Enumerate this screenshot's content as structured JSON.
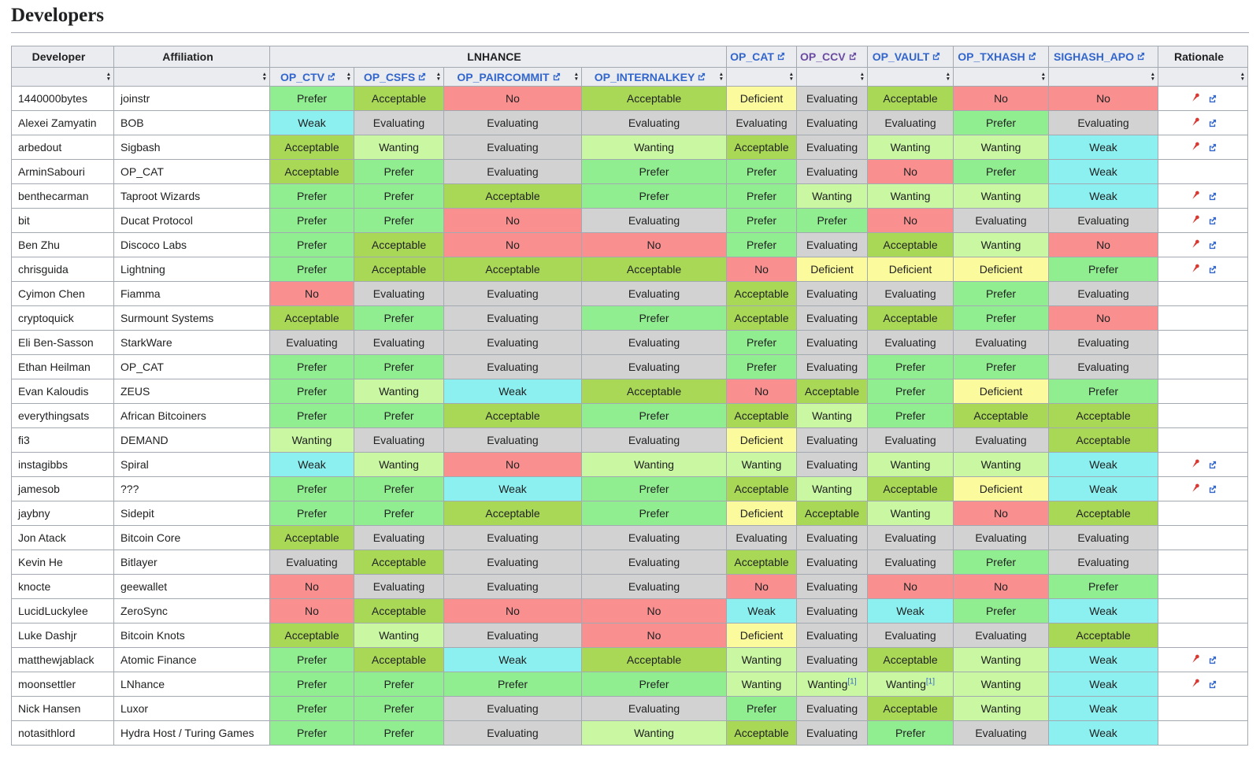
{
  "page": {
    "title": "Developers"
  },
  "table": {
    "columns": {
      "developer": "Developer",
      "affiliation": "Affiliation",
      "lnhance_group": "LNHANCE",
      "rationale": "Rationale",
      "lnhance_sub": [
        {
          "id": "op_ctv",
          "label": "OP_CTV"
        },
        {
          "id": "op_csfs",
          "label": "OP_CSFS"
        },
        {
          "id": "op_paircommit",
          "label": "OP_PAIRCOMMIT"
        },
        {
          "id": "op_internalkey",
          "label": "OP_INTERNALKEY"
        }
      ],
      "proposals": [
        {
          "id": "op_cat",
          "label": "OP_CAT",
          "visited": false
        },
        {
          "id": "op_ccv",
          "label": "OP_CCV",
          "visited": true
        },
        {
          "id": "op_vault",
          "label": "OP_VAULT",
          "visited": false
        },
        {
          "id": "op_txhash",
          "label": "OP_TXHASH",
          "visited": false
        },
        {
          "id": "sighash_apo",
          "label": "SIGHASH_APO",
          "visited": false
        }
      ]
    },
    "link_colors": {
      "link": "#3366cc",
      "visited": "#6b4ba1"
    },
    "status_colors": {
      "Prefer": "#90ee90",
      "Acceptable": "#a9d857",
      "Wanting": "#c9f7a2",
      "Weak": "#8cf0f0",
      "Evaluating": "#d2d2d2",
      "Deficient": "#fbfa9d",
      "No": "#f98f8f"
    },
    "pin_color": "#d73a33",
    "rows": [
      {
        "developer": "1440000bytes",
        "affiliation": "joinstr",
        "cells": [
          "Prefer",
          "Acceptable",
          "No",
          "Acceptable",
          "Deficient",
          "Evaluating",
          "Acceptable",
          "No",
          "No"
        ],
        "rationale": true
      },
      {
        "developer": "Alexei Zamyatin",
        "affiliation": "BOB",
        "cells": [
          "Weak",
          "Evaluating",
          "Evaluating",
          "Evaluating",
          "Evaluating",
          "Evaluating",
          "Evaluating",
          "Prefer",
          "Evaluating"
        ],
        "rationale": true
      },
      {
        "developer": "arbedout",
        "affiliation": "Sigbash",
        "cells": [
          "Acceptable",
          "Wanting",
          "Evaluating",
          "Wanting",
          "Acceptable",
          "Evaluating",
          "Wanting",
          "Wanting",
          "Weak"
        ],
        "rationale": true
      },
      {
        "developer": "ArminSabouri",
        "affiliation": "OP_CAT",
        "cells": [
          "Acceptable",
          "Prefer",
          "Evaluating",
          "Prefer",
          "Prefer",
          "Evaluating",
          "No",
          "Prefer",
          "Weak"
        ],
        "rationale": false
      },
      {
        "developer": "benthecarman",
        "affiliation": "Taproot Wizards",
        "cells": [
          "Prefer",
          "Prefer",
          "Acceptable",
          "Prefer",
          "Prefer",
          "Wanting",
          "Wanting",
          "Wanting",
          "Weak"
        ],
        "rationale": true
      },
      {
        "developer": "bit",
        "affiliation": "Ducat Protocol",
        "cells": [
          "Prefer",
          "Prefer",
          "No",
          "Evaluating",
          "Prefer",
          "Prefer",
          "No",
          "Evaluating",
          "Evaluating"
        ],
        "rationale": true
      },
      {
        "developer": "Ben Zhu",
        "affiliation": "Discoco Labs",
        "cells": [
          "Prefer",
          "Acceptable",
          "No",
          "No",
          "Prefer",
          "Evaluating",
          "Acceptable",
          "Wanting",
          "No"
        ],
        "rationale": true
      },
      {
        "developer": "chrisguida",
        "affiliation": "Lightning",
        "cells": [
          "Prefer",
          "Acceptable",
          "Acceptable",
          "Acceptable",
          "No",
          "Deficient",
          "Deficient",
          "Deficient",
          "Prefer"
        ],
        "rationale": true
      },
      {
        "developer": "Cyimon Chen",
        "affiliation": "Fiamma",
        "cells": [
          "No",
          "Evaluating",
          "Evaluating",
          "Evaluating",
          "Acceptable",
          "Evaluating",
          "Evaluating",
          "Prefer",
          "Evaluating"
        ],
        "rationale": false
      },
      {
        "developer": "cryptoquick",
        "affiliation": "Surmount Systems",
        "cells": [
          "Acceptable",
          "Prefer",
          "Evaluating",
          "Prefer",
          "Acceptable",
          "Evaluating",
          "Acceptable",
          "Prefer",
          "No"
        ],
        "rationale": false
      },
      {
        "developer": "Eli Ben-Sasson",
        "affiliation": "StarkWare",
        "cells": [
          "Evaluating",
          "Evaluating",
          "Evaluating",
          "Evaluating",
          "Prefer",
          "Evaluating",
          "Evaluating",
          "Evaluating",
          "Evaluating"
        ],
        "rationale": false
      },
      {
        "developer": "Ethan Heilman",
        "affiliation": "OP_CAT",
        "cells": [
          "Prefer",
          "Prefer",
          "Evaluating",
          "Evaluating",
          "Prefer",
          "Evaluating",
          "Prefer",
          "Prefer",
          "Evaluating"
        ],
        "rationale": false
      },
      {
        "developer": "Evan Kaloudis",
        "affiliation": "ZEUS",
        "cells": [
          "Prefer",
          "Wanting",
          "Weak",
          "Acceptable",
          "No",
          "Acceptable",
          "Prefer",
          "Deficient",
          "Prefer"
        ],
        "rationale": false
      },
      {
        "developer": "everythingsats",
        "affiliation": "African Bitcoiners",
        "cells": [
          "Prefer",
          "Prefer",
          "Acceptable",
          "Prefer",
          "Acceptable",
          "Wanting",
          "Prefer",
          "Acceptable",
          "Acceptable"
        ],
        "rationale": false
      },
      {
        "developer": "fi3",
        "affiliation": "DEMAND",
        "cells": [
          "Wanting",
          "Evaluating",
          "Evaluating",
          "Evaluating",
          "Deficient",
          "Evaluating",
          "Evaluating",
          "Evaluating",
          "Acceptable"
        ],
        "rationale": false
      },
      {
        "developer": "instagibbs",
        "affiliation": "Spiral",
        "cells": [
          "Weak",
          "Wanting",
          "No",
          "Wanting",
          "Wanting",
          "Evaluating",
          "Wanting",
          "Wanting",
          "Weak"
        ],
        "rationale": true
      },
      {
        "developer": "jamesob",
        "affiliation": "???",
        "cells": [
          "Prefer",
          "Prefer",
          "Weak",
          "Prefer",
          "Acceptable",
          "Wanting",
          "Acceptable",
          "Deficient",
          "Weak"
        ],
        "rationale": true
      },
      {
        "developer": "jaybny",
        "affiliation": "Sidepit",
        "cells": [
          "Prefer",
          "Prefer",
          "Acceptable",
          "Prefer",
          "Deficient",
          "Acceptable",
          "Wanting",
          "No",
          "Acceptable"
        ],
        "rationale": false
      },
      {
        "developer": "Jon Atack",
        "affiliation": "Bitcoin Core",
        "cells": [
          "Acceptable",
          "Evaluating",
          "Evaluating",
          "Evaluating",
          "Evaluating",
          "Evaluating",
          "Evaluating",
          "Evaluating",
          "Evaluating"
        ],
        "rationale": false
      },
      {
        "developer": "Kevin He",
        "affiliation": "Bitlayer",
        "cells": [
          "Evaluating",
          "Acceptable",
          "Evaluating",
          "Evaluating",
          "Acceptable",
          "Evaluating",
          "Evaluating",
          "Prefer",
          "Evaluating"
        ],
        "rationale": false
      },
      {
        "developer": "knocte",
        "affiliation": "geewallet",
        "cells": [
          "No",
          "Evaluating",
          "Evaluating",
          "Evaluating",
          "No",
          "Evaluating",
          "No",
          "No",
          "Prefer"
        ],
        "rationale": false
      },
      {
        "developer": "LucidLuckylee",
        "affiliation": "ZeroSync",
        "cells": [
          "No",
          "Acceptable",
          "No",
          "No",
          "Weak",
          "Evaluating",
          "Weak",
          "Prefer",
          "Weak"
        ],
        "rationale": false
      },
      {
        "developer": "Luke Dashjr",
        "affiliation": "Bitcoin Knots",
        "cells": [
          "Acceptable",
          "Wanting",
          "Evaluating",
          "No",
          "Deficient",
          "Evaluating",
          "Evaluating",
          "Evaluating",
          "Acceptable"
        ],
        "rationale": false
      },
      {
        "developer": "matthewjablack",
        "affiliation": "Atomic Finance",
        "cells": [
          "Prefer",
          "Acceptable",
          "Weak",
          "Acceptable",
          "Wanting",
          "Evaluating",
          "Acceptable",
          "Wanting",
          "Weak"
        ],
        "rationale": true
      },
      {
        "developer": "moonsettler",
        "affiliation": "LNhance",
        "cells": [
          "Prefer",
          "Prefer",
          "Prefer",
          "Prefer",
          "Wanting",
          "Wanting[1]",
          "Wanting[1]",
          "Wanting",
          "Weak"
        ],
        "rationale": true
      },
      {
        "developer": "Nick Hansen",
        "affiliation": "Luxor",
        "cells": [
          "Prefer",
          "Prefer",
          "Evaluating",
          "Evaluating",
          "Prefer",
          "Evaluating",
          "Acceptable",
          "Wanting",
          "Weak"
        ],
        "rationale": false
      },
      {
        "developer": "notasithlord",
        "affiliation": "Hydra Host / Turing Games",
        "cells": [
          "Prefer",
          "Prefer",
          "Evaluating",
          "Wanting",
          "Acceptable",
          "Evaluating",
          "Prefer",
          "Evaluating",
          "Weak"
        ],
        "rationale": false
      }
    ]
  }
}
